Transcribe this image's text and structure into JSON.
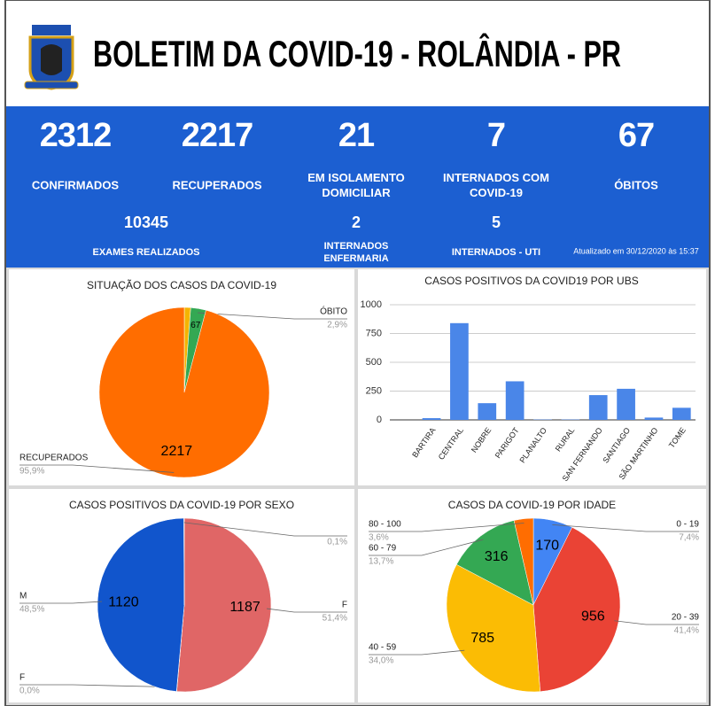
{
  "header": {
    "title": "BOLETIM DA COVID-19 - ROLÂNDIA - PR"
  },
  "stats": [
    {
      "value": 2312,
      "label": [
        "CONFIRMADOS"
      ]
    },
    {
      "value": 2217,
      "label": [
        "RECUPERADOS"
      ]
    },
    {
      "value": 21,
      "label": [
        "EM ISOLAMENTO",
        "DOMICILIAR"
      ]
    },
    {
      "value": 7,
      "label": [
        "INTERNADOS COM",
        "COVID-19"
      ]
    },
    {
      "value": 67,
      "label": [
        "ÓBITOS"
      ]
    },
    {
      "value": 10345,
      "label": [
        "EXAMES REALIZADOS"
      ]
    },
    {
      "value": 2,
      "label": [
        "INTERNADOS",
        "ENFERMARIA"
      ]
    },
    {
      "value": 5,
      "label": [
        "INTERNADOS - UTI"
      ]
    }
  ],
  "updated": "Atualizado em 30/12/2020 às 15:37",
  "chart_data": [
    {
      "type": "pie",
      "title": "SITUAÇÃO DOS CASOS DA COVID-19",
      "categories": [
        null,
        "ÓBITO",
        "RECUPERADOS"
      ],
      "values": [
        28,
        67,
        2217
      ],
      "value_labels": [
        null,
        "67",
        "2217"
      ],
      "percent_labels": [
        null,
        "2,9%",
        "95,9%"
      ],
      "colors": [
        "#f4b400",
        "#34a853",
        "#ff6d00"
      ]
    },
    {
      "type": "bar",
      "title": "CASOS POSITIVOS DA COVID19 POR UBS",
      "categories": [
        null,
        "BARTIRA",
        "CENTRAL",
        "NOBRE",
        "PARIGOT",
        "PLANALTO",
        "RURAL",
        "SAN FERNANDO",
        "SANTIAGO",
        "SÃO MARTINHO",
        "TOME"
      ],
      "values": [
        0,
        15,
        840,
        145,
        335,
        3,
        3,
        215,
        270,
        20,
        105
      ],
      "color": "#4a86e8",
      "ylim": [
        0,
        1000
      ],
      "yticks": [
        0,
        250,
        500,
        750,
        1000
      ],
      "grid": true
    },
    {
      "type": "pie",
      "title": "CASOS POSITIVOS DA COVID-19 POR SEXO",
      "categories": [
        "F",
        "F",
        "M",
        null
      ],
      "values": [
        1187,
        1,
        1120,
        2
      ],
      "value_labels": [
        "1187",
        null,
        "1120",
        null
      ],
      "percent_labels": [
        "51,4%",
        "0,0%",
        "48,5%",
        "0,1%"
      ],
      "colors": [
        "#e06666",
        "#999999",
        "#1155cc",
        "#999999"
      ]
    },
    {
      "type": "pie",
      "title": "CASOS DA COVID-19 POR IDADE",
      "categories": [
        "0 - 19",
        "20 - 39",
        "40 - 59",
        "60 - 79",
        "80 - 100"
      ],
      "values": [
        170,
        956,
        785,
        316,
        83
      ],
      "value_labels": [
        "170",
        "956",
        "785",
        "316",
        null
      ],
      "percent_labels": [
        "7,4%",
        "41,4%",
        "34,0%",
        "13,7%",
        "3,6%"
      ],
      "colors": [
        "#4285f4",
        "#ea4335",
        "#fbbc04",
        "#34a853",
        "#ff6d01"
      ]
    }
  ]
}
